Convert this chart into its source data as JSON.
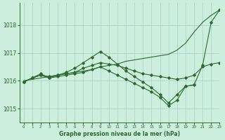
{
  "title": "Graphe pression niveau de la mer (hPa)",
  "background_color": "#cceedd",
  "grid_color": "#aacccc",
  "line_color": "#2d6a2d",
  "xlim": [
    -0.5,
    23
  ],
  "ylim": [
    1014.5,
    1018.8
  ],
  "yticks": [
    1015,
    1016,
    1017,
    1018
  ],
  "xticks": [
    0,
    1,
    2,
    3,
    4,
    5,
    6,
    7,
    8,
    9,
    10,
    11,
    12,
    13,
    14,
    15,
    16,
    17,
    18,
    19,
    20,
    21,
    22,
    23
  ],
  "series": [
    {
      "x": [
        0,
        1,
        2,
        3,
        4,
        5,
        6,
        7,
        8,
        9,
        10,
        11,
        12,
        13,
        14,
        15,
        16,
        17,
        18,
        19,
        20,
        21,
        22,
        23
      ],
      "y": [
        1016.0,
        1016.05,
        1016.1,
        1016.15,
        1016.2,
        1016.25,
        1016.3,
        1016.35,
        1016.4,
        1016.5,
        1016.55,
        1016.6,
        1016.7,
        1016.75,
        1016.8,
        1016.85,
        1016.9,
        1016.95,
        1017.1,
        1017.35,
        1017.75,
        1018.1,
        1018.35,
        1018.55
      ],
      "marker": false
    },
    {
      "x": [
        0,
        1,
        2,
        3,
        4,
        5,
        6,
        7,
        8,
        9,
        10,
        11,
        12,
        13,
        14,
        15,
        16,
        17,
        18,
        19,
        20,
        21,
        22,
        23
      ],
      "y": [
        1015.95,
        1016.1,
        1016.2,
        1016.15,
        1016.2,
        1016.25,
        1016.3,
        1016.45,
        1016.55,
        1016.65,
        1016.6,
        1016.55,
        1016.45,
        1016.35,
        1016.25,
        1016.2,
        1016.15,
        1016.1,
        1016.05,
        1016.1,
        1016.2,
        1016.5,
        1016.6,
        1016.65
      ],
      "marker": true
    },
    {
      "x": [
        0,
        1,
        2,
        3,
        4,
        5,
        6,
        7,
        8,
        9,
        10,
        11,
        12,
        13,
        14,
        15,
        16,
        17,
        18,
        19,
        20,
        21,
        22,
        23
      ],
      "y": [
        1015.95,
        1016.1,
        1016.2,
        1016.1,
        1016.15,
        1016.2,
        1016.25,
        1016.3,
        1016.4,
        1016.5,
        1016.35,
        1016.2,
        1016.05,
        1015.9,
        1015.75,
        1015.6,
        1015.4,
        1015.1,
        1015.3,
        1015.8,
        1015.85,
        1016.55,
        1018.1,
        1018.55
      ],
      "marker": true
    },
    {
      "x": [
        0,
        1,
        2,
        3,
        4,
        5,
        6,
        7,
        8,
        9,
        10,
        11,
        12,
        13,
        14,
        15,
        16,
        17,
        18,
        19,
        20
      ],
      "y": [
        1015.95,
        1016.1,
        1016.25,
        1016.1,
        1016.2,
        1016.3,
        1016.45,
        1016.65,
        1016.85,
        1017.05,
        1016.85,
        1016.6,
        1016.35,
        1016.15,
        1015.95,
        1015.75,
        1015.5,
        1015.2,
        1015.5,
        1015.8,
        1015.85
      ],
      "marker": true
    }
  ]
}
